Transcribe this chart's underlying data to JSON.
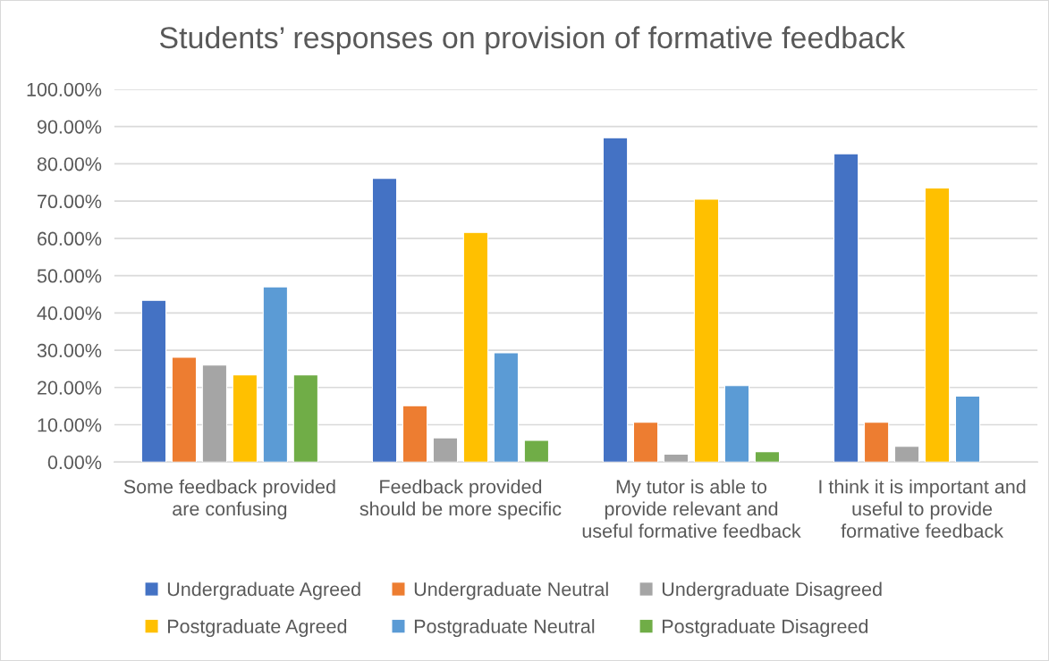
{
  "chart_data": {
    "type": "bar",
    "title": "Students’ responses on provision of formative feedback",
    "categories": [
      "Some feedback provided\nare confusing",
      "Feedback provided\nshould be more specific",
      "My tutor is able to\nprovide relevant and\nuseful formative feedback",
      "I think it is important and\nuseful to provide\nformative feedback"
    ],
    "series": [
      {
        "name": "Undergraduate Agreed",
        "color": "#4472c4",
        "values": [
          43.4,
          76.1,
          87.0,
          82.7
        ]
      },
      {
        "name": "Undergraduate Neutral",
        "color": "#ed7d31",
        "values": [
          28.1,
          15.1,
          10.7,
          10.7
        ]
      },
      {
        "name": "Undergraduate Disagreed",
        "color": "#a5a5a5",
        "values": [
          26.0,
          6.5,
          2.1,
          4.2
        ]
      },
      {
        "name": "Postgraduate Agreed",
        "color": "#ffc000",
        "values": [
          23.4,
          61.6,
          70.5,
          73.5
        ]
      },
      {
        "name": "Postgraduate Neutral",
        "color": "#5b9bd5",
        "values": [
          47.0,
          29.3,
          20.5,
          17.7
        ]
      },
      {
        "name": "Postgraduate Disagreed",
        "color": "#70ad47",
        "values": [
          23.4,
          5.8,
          2.8,
          null
        ]
      }
    ],
    "ylim": [
      0,
      100
    ],
    "yticks": [
      {
        "value": 0,
        "label": "0.00%"
      },
      {
        "value": 10,
        "label": "10.00%"
      },
      {
        "value": 20,
        "label": "20.00%"
      },
      {
        "value": 30,
        "label": "30.00%"
      },
      {
        "value": 40,
        "label": "40.00%"
      },
      {
        "value": 50,
        "label": "50.00%"
      },
      {
        "value": 60,
        "label": "60.00%"
      },
      {
        "value": 70,
        "label": "70.00%"
      },
      {
        "value": 80,
        "label": "80.00%"
      },
      {
        "value": 90,
        "label": "90.00%"
      },
      {
        "value": 100,
        "label": "100.00%"
      }
    ],
    "grid": "y",
    "legend": "bottom"
  }
}
